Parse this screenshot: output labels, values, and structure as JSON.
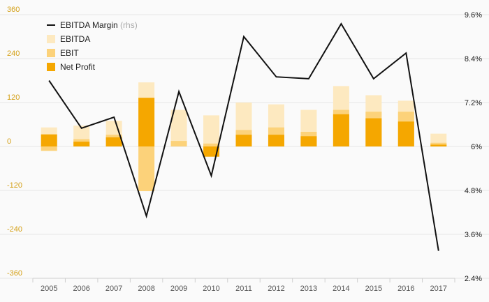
{
  "chart_data": {
    "type": "bar",
    "categories": [
      "2005",
      "2006",
      "2007",
      "2008",
      "2009",
      "2010",
      "2011",
      "2012",
      "2013",
      "2014",
      "2015",
      "2016",
      "2017"
    ],
    "series": [
      {
        "name": "EBITDA",
        "type": "bar",
        "axis": "left",
        "color": "#fde9c0",
        "values": [
          52,
          57,
          70,
          175,
          100,
          85,
          120,
          115,
          100,
          165,
          140,
          125,
          35
        ]
      },
      {
        "name": "EBIT",
        "type": "bar",
        "axis": "left",
        "color": "#fcd27a",
        "values": [
          -12,
          20,
          32,
          -122,
          15,
          8,
          45,
          52,
          40,
          100,
          95,
          95,
          10
        ]
      },
      {
        "name": "Net Profit",
        "type": "bar",
        "axis": "left",
        "color": "#f5a700",
        "values": [
          33,
          13,
          25,
          133,
          0,
          -28,
          32,
          32,
          28,
          88,
          77,
          68,
          5
        ]
      },
      {
        "name": "EBITDA Margin",
        "name_suffix": "(rhs)",
        "type": "line",
        "axis": "right",
        "color": "#111111",
        "values": [
          7.8,
          6.5,
          6.8,
          4.1,
          7.5,
          5.2,
          9.0,
          7.9,
          7.85,
          9.35,
          7.85,
          8.55,
          3.15
        ]
      }
    ],
    "yleft": {
      "ticks": [
        "360",
        "240",
        "120",
        "0",
        "-120",
        "-240",
        "-360"
      ],
      "ylim": [
        -360,
        360
      ],
      "color": "#d4a017"
    },
    "yright": {
      "ticks": [
        "9.6%",
        "8.4%",
        "7.2%",
        "6%",
        "4.8%",
        "3.6%",
        "2.4%"
      ],
      "ylim": [
        2.4,
        9.6
      ],
      "color": "#222222"
    },
    "grid": true,
    "legend_position": "top-left",
    "title": "",
    "xlabel": "",
    "ylabel": ""
  }
}
